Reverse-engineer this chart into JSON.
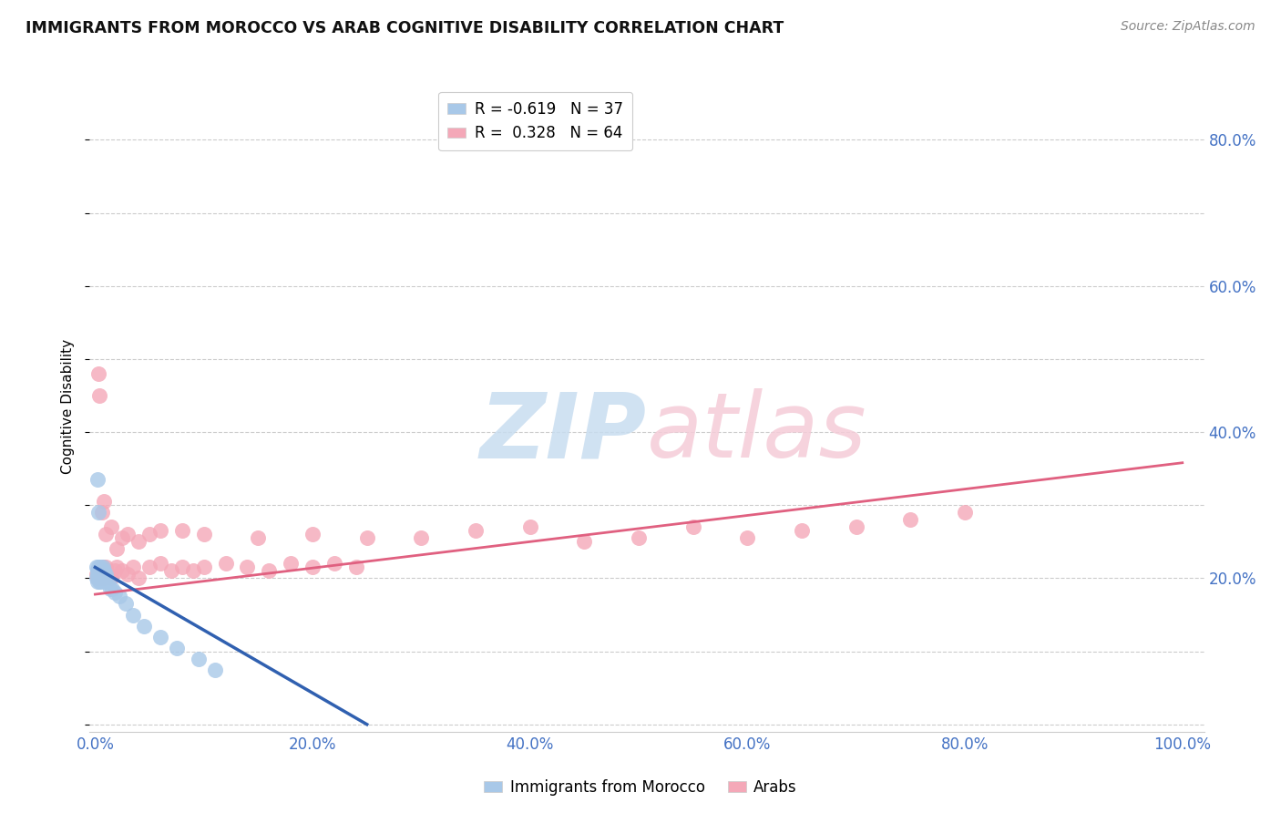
{
  "title": "IMMIGRANTS FROM MOROCCO VS ARAB COGNITIVE DISABILITY CORRELATION CHART",
  "source": "Source: ZipAtlas.com",
  "tick_color": "#4472c4",
  "ylabel": "Cognitive Disability",
  "x_tick_labels": [
    "0.0%",
    "20.0%",
    "40.0%",
    "60.0%",
    "80.0%",
    "100.0%"
  ],
  "x_tick_values": [
    0,
    0.2,
    0.4,
    0.6,
    0.8,
    1.0
  ],
  "y_tick_labels": [
    "20.0%",
    "40.0%",
    "60.0%",
    "80.0%"
  ],
  "y_tick_values": [
    0.2,
    0.4,
    0.6,
    0.8
  ],
  "xlim": [
    -0.005,
    1.02
  ],
  "ylim": [
    -0.01,
    0.88
  ],
  "legend_label1": "R = -0.619   N = 37",
  "legend_label2": "R =  0.328   N = 64",
  "series1_label": "Immigrants from Morocco",
  "series2_label": "Arabs",
  "series1_color": "#a8c8e8",
  "series2_color": "#f4a8b8",
  "series1_edge_color": "#a8c8e8",
  "series2_edge_color": "#f4a8b8",
  "series1_line_color": "#3060b0",
  "series2_line_color": "#e06080",
  "background_color": "#ffffff",
  "grid_color": "#cccccc",
  "series1_x": [
    0.001,
    0.001,
    0.002,
    0.002,
    0.002,
    0.003,
    0.003,
    0.003,
    0.003,
    0.004,
    0.004,
    0.004,
    0.005,
    0.005,
    0.005,
    0.006,
    0.006,
    0.007,
    0.007,
    0.008,
    0.008,
    0.01,
    0.01,
    0.012,
    0.014,
    0.016,
    0.018,
    0.022,
    0.028,
    0.035,
    0.045,
    0.06,
    0.075,
    0.095,
    0.11,
    0.002,
    0.003
  ],
  "series1_y": [
    0.2,
    0.215,
    0.205,
    0.21,
    0.195,
    0.21,
    0.205,
    0.2,
    0.215,
    0.205,
    0.195,
    0.21,
    0.215,
    0.205,
    0.195,
    0.21,
    0.205,
    0.215,
    0.2,
    0.21,
    0.195,
    0.205,
    0.2,
    0.195,
    0.185,
    0.185,
    0.18,
    0.175,
    0.165,
    0.15,
    0.135,
    0.12,
    0.105,
    0.09,
    0.075,
    0.335,
    0.29
  ],
  "series2_x": [
    0.001,
    0.002,
    0.002,
    0.003,
    0.003,
    0.003,
    0.004,
    0.004,
    0.005,
    0.005,
    0.006,
    0.007,
    0.008,
    0.009,
    0.01,
    0.012,
    0.015,
    0.018,
    0.02,
    0.025,
    0.03,
    0.035,
    0.04,
    0.05,
    0.06,
    0.07,
    0.08,
    0.09,
    0.1,
    0.12,
    0.14,
    0.16,
    0.18,
    0.2,
    0.22,
    0.24,
    0.003,
    0.004,
    0.006,
    0.008,
    0.01,
    0.015,
    0.02,
    0.025,
    0.03,
    0.04,
    0.05,
    0.06,
    0.08,
    0.1,
    0.15,
    0.2,
    0.25,
    0.3,
    0.35,
    0.4,
    0.45,
    0.5,
    0.55,
    0.6,
    0.65,
    0.7,
    0.75,
    0.8
  ],
  "series2_y": [
    0.205,
    0.21,
    0.2,
    0.21,
    0.205,
    0.2,
    0.205,
    0.2,
    0.21,
    0.205,
    0.2,
    0.215,
    0.2,
    0.21,
    0.215,
    0.205,
    0.2,
    0.21,
    0.215,
    0.21,
    0.205,
    0.215,
    0.2,
    0.215,
    0.22,
    0.21,
    0.215,
    0.21,
    0.215,
    0.22,
    0.215,
    0.21,
    0.22,
    0.215,
    0.22,
    0.215,
    0.48,
    0.45,
    0.29,
    0.305,
    0.26,
    0.27,
    0.24,
    0.255,
    0.26,
    0.25,
    0.26,
    0.265,
    0.265,
    0.26,
    0.255,
    0.26,
    0.255,
    0.255,
    0.265,
    0.27,
    0.25,
    0.255,
    0.27,
    0.255,
    0.265,
    0.27,
    0.28,
    0.29
  ],
  "series1_line_x": [
    0.0,
    0.25
  ],
  "series1_line_y": [
    0.215,
    0.0
  ],
  "series2_line_x": [
    0.0,
    1.0
  ],
  "series2_line_y": [
    0.178,
    0.358
  ]
}
